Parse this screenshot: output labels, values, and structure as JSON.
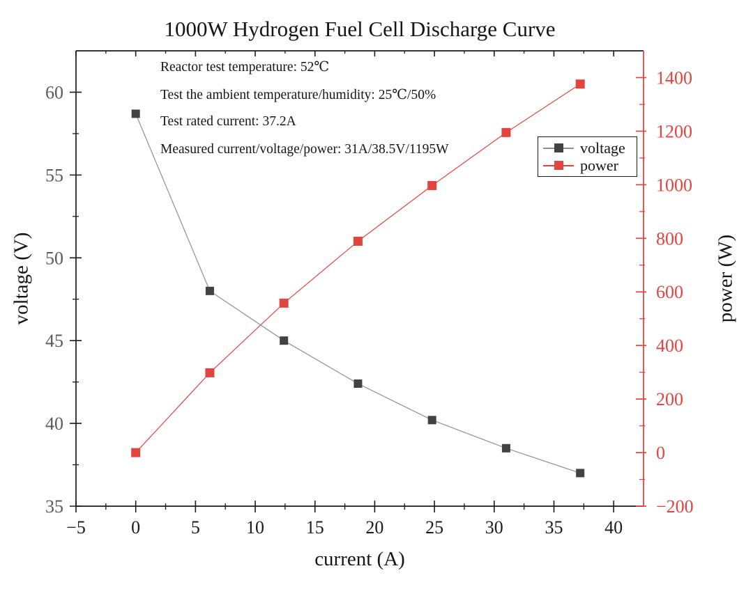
{
  "figure": {
    "background": "#ffffff",
    "text_color": "#161616"
  },
  "chart_data": {
    "type": "line",
    "title": "1000W Hydrogen Fuel Cell Discharge Curve",
    "xlabel": "current (A)",
    "ylabel_left": "voltage (V)",
    "ylabel_right": "power (W)",
    "x": [
      0,
      6.2,
      12.4,
      18.6,
      24.8,
      31,
      37.2
    ],
    "series": [
      {
        "name": "voltage",
        "axis": "left",
        "marker": "square",
        "marker_color": "#424242",
        "line_color": "#8f8f8f",
        "values": [
          58.7,
          48,
          45,
          42.4,
          40.2,
          38.5,
          37
        ]
      },
      {
        "name": "power",
        "axis": "right",
        "marker": "square",
        "marker_color": "#e2453f",
        "line_color": "#e2453f",
        "values": [
          0,
          298,
          558,
          789,
          997,
          1195,
          1376
        ]
      }
    ],
    "xlim": [
      -5,
      42.5
    ],
    "ylim_left": [
      35,
      62.5
    ],
    "ylim_right": [
      -200,
      1500
    ],
    "xticks": [
      -5,
      0,
      5,
      10,
      15,
      20,
      25,
      30,
      35,
      40
    ],
    "x_minor_step": 2.5,
    "yticks_left": [
      35,
      40,
      45,
      50,
      55,
      60
    ],
    "y_left_minor_step": 2.5,
    "yticks_right": [
      -200,
      0,
      200,
      400,
      600,
      800,
      1000,
      1200,
      1400
    ],
    "y_right_minor_step": 100,
    "grid": false,
    "legend_position": "upper right",
    "axis_colors": {
      "left": "#1a1a1a",
      "bottom": "#1a1a1a",
      "top": "#1a1a1a",
      "right": "#e2453f"
    },
    "tick_label_colors": {
      "x": "#1c1c1c",
      "left": "#5a5a5a",
      "right": "#e2453f"
    },
    "annotations": [
      "Reactor test temperature: 52℃",
      "Test the ambient temperature/humidity: 25℃/50%",
      "Test rated current: 37.2A",
      "Measured current/voltage/power: 31A/38.5V/1195W"
    ]
  }
}
